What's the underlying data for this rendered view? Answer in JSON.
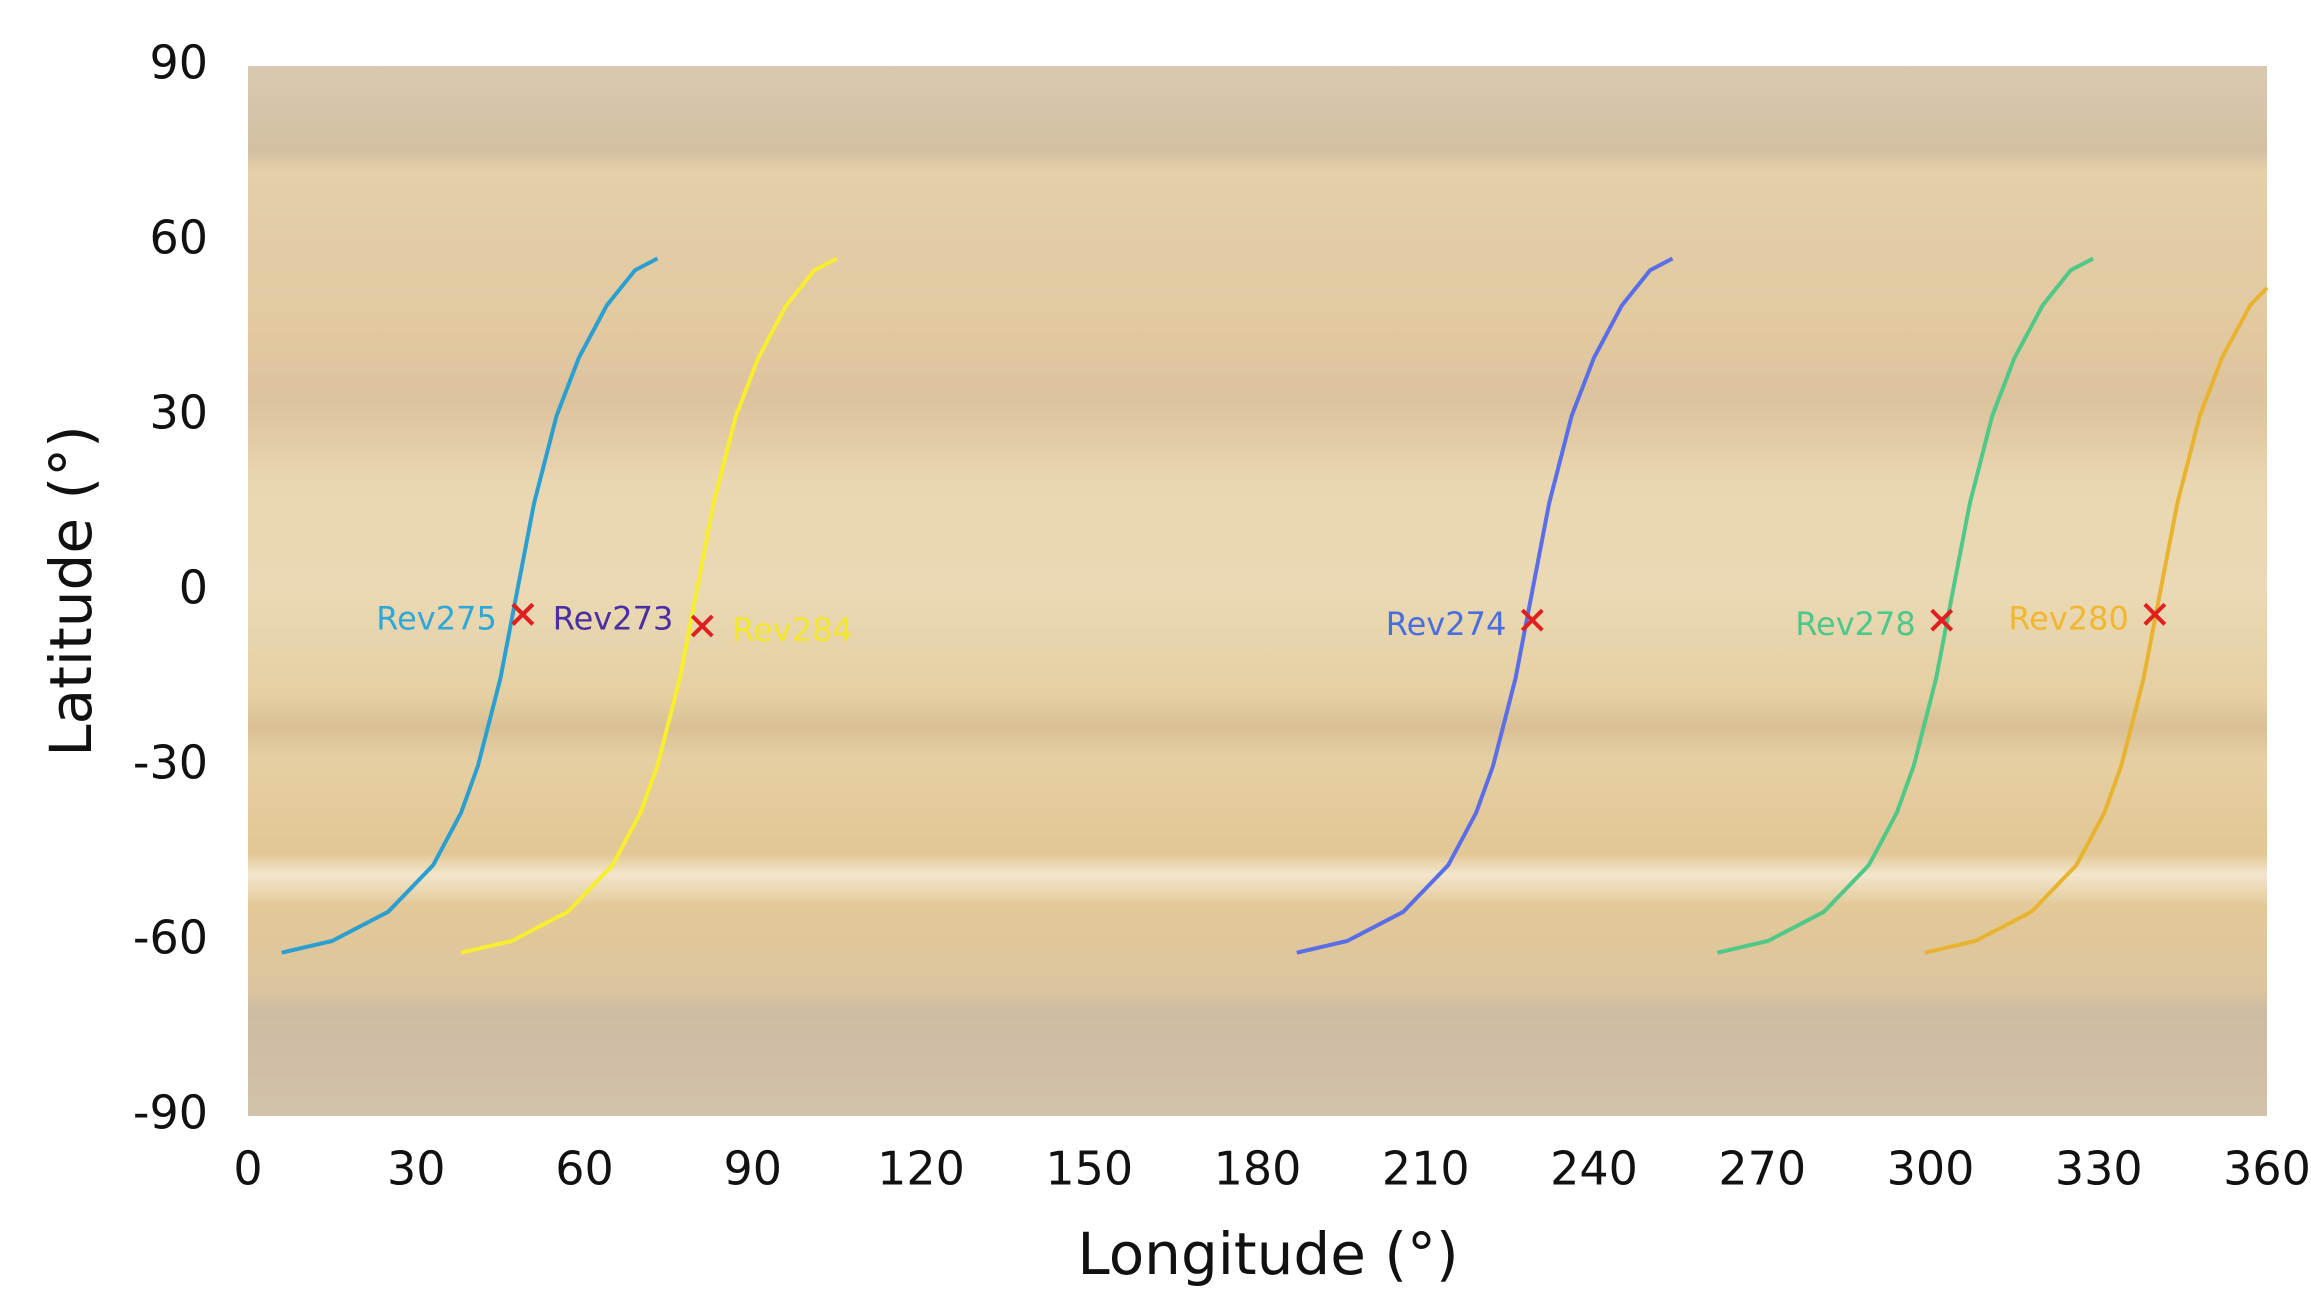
{
  "chart_data": {
    "type": "line",
    "xlabel": "Longitude (°)",
    "ylabel": "Latitude (°)",
    "xlim": [
      0,
      360
    ],
    "xticks": [
      0,
      30,
      60,
      90,
      120,
      150,
      180,
      210,
      240,
      270,
      300,
      330,
      360
    ],
    "ylim": [
      -90,
      90
    ],
    "yticks": [
      -90,
      -60,
      -30,
      0,
      30,
      60,
      90
    ],
    "series": [
      {
        "color": "#2a9fd0",
        "x": [
          6,
          15,
          25,
          33,
          38,
          41,
          45,
          48,
          51,
          55,
          59,
          64,
          69,
          73
        ],
        "values": [
          -62,
          -60,
          -55,
          -47,
          -38,
          -30,
          -15,
          0,
          15,
          30,
          40,
          49,
          55,
          57
        ]
      },
      {
        "color": "#f7ee30",
        "x": [
          38,
          47,
          57,
          65,
          70,
          73,
          77,
          80,
          83,
          87,
          91,
          96,
          101,
          105
        ],
        "values": [
          -62,
          -60,
          -55,
          -47,
          -38,
          -30,
          -15,
          0,
          15,
          30,
          40,
          49,
          55,
          57
        ]
      },
      {
        "color": "#5a6ee8",
        "x": [
          187,
          196,
          206,
          214,
          219,
          222,
          226,
          229,
          232,
          236,
          240,
          245,
          250,
          254
        ],
        "values": [
          -62,
          -60,
          -55,
          -47,
          -38,
          -30,
          -15,
          0,
          15,
          30,
          40,
          49,
          55,
          57
        ]
      },
      {
        "color": "#50c888",
        "x": [
          262,
          271,
          281,
          289,
          294,
          297,
          301,
          304,
          307,
          311,
          315,
          320,
          325,
          329
        ],
        "values": [
          -62,
          -60,
          -55,
          -47,
          -38,
          -30,
          -15,
          0,
          15,
          30,
          40,
          49,
          55,
          57
        ]
      },
      {
        "color": "#e8b430",
        "x": [
          299,
          308,
          318,
          326,
          331,
          334,
          338,
          341,
          344,
          348,
          352,
          357,
          360
        ],
        "values": [
          -62,
          -60,
          -55,
          -47,
          -38,
          -30,
          -15,
          0,
          15,
          30,
          40,
          49,
          52
        ]
      }
    ],
    "marker_color": "#e02020",
    "crossings": [
      {
        "label": "Rev275",
        "color": "#2fa8d8",
        "x": 49,
        "y": -4,
        "side": "left"
      },
      {
        "label": "Rev273",
        "color": "#4b2fa0",
        "x": 49,
        "y": -4,
        "side": "right"
      },
      {
        "label": "Rev284",
        "color": "#f2e82a",
        "x": 81,
        "y": -6,
        "side": "right"
      },
      {
        "label": "Rev274",
        "color": "#4a6ee0",
        "x": 229,
        "y": -5,
        "side": "left"
      },
      {
        "label": "Rev278",
        "color": "#4cc98a",
        "x": 302,
        "y": -5,
        "side": "left"
      },
      {
        "label": "Rev280",
        "color": "#f0b830",
        "x": 340,
        "y": -4,
        "side": "left"
      }
    ]
  }
}
